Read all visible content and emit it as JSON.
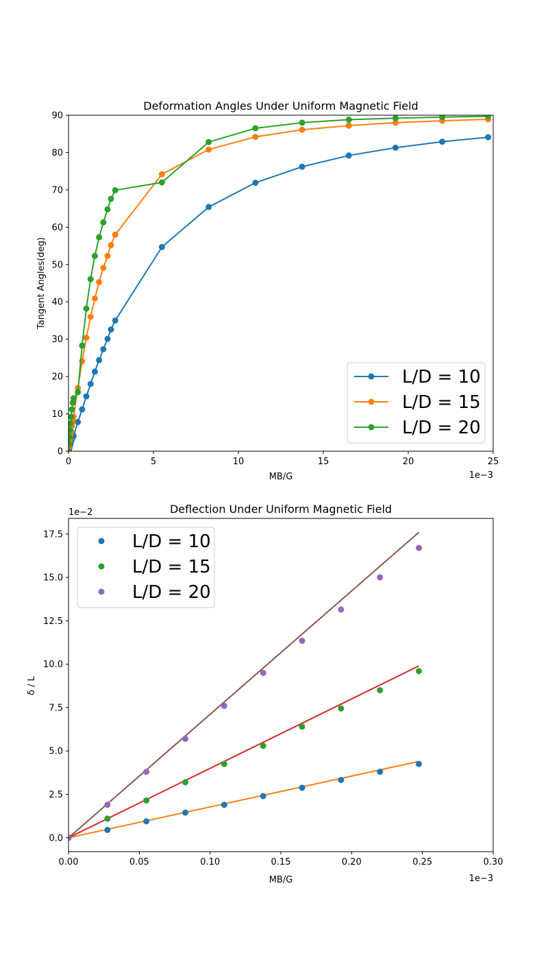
{
  "chart_data": [
    {
      "type": "line",
      "title": "Deformation Angles Under Uniform Magnetic Field",
      "xlabel": "MB/G",
      "ylabel": "Tangent Angles(deg)",
      "x_offset_text": "1e−3",
      "xlim": [
        0,
        25
      ],
      "ylim": [
        0,
        90
      ],
      "xticks": [
        0,
        5,
        10,
        15,
        20,
        25
      ],
      "yticks": [
        0,
        10,
        20,
        30,
        40,
        50,
        60,
        70,
        80,
        90
      ],
      "xtick_labels": [
        "0",
        "5",
        "10",
        "15",
        "20",
        "25"
      ],
      "ytick_labels": [
        "0",
        "10",
        "20",
        "30",
        "40",
        "50",
        "60",
        "70",
        "80",
        "90"
      ],
      "grid": false,
      "legend_position": "lower right",
      "series": [
        {
          "name": "L/D = 10",
          "color": "#1f77b4",
          "x": [
            0,
            0.03,
            0.06,
            0.09,
            0.12,
            0.15,
            0.2,
            0.25,
            0.3,
            0.55,
            0.8,
            1.05,
            1.3,
            1.55,
            1.8,
            2.05,
            2.3,
            2.5,
            2.75,
            5.5,
            8.25,
            11.0,
            13.75,
            16.5,
            19.25,
            22.0,
            24.7
          ],
          "y": [
            0,
            0.5,
            1.0,
            1.5,
            2.0,
            2.5,
            3.2,
            3.8,
            4.1,
            7.8,
            11.2,
            14.7,
            18.0,
            21.3,
            24.4,
            27.3,
            30.1,
            32.6,
            35.0,
            54.7,
            65.4,
            71.9,
            76.2,
            79.2,
            81.3,
            82.9,
            84.1
          ]
        },
        {
          "name": "L/D = 15",
          "color": "#ff7f0e",
          "x": [
            0,
            0.03,
            0.06,
            0.09,
            0.12,
            0.15,
            0.2,
            0.25,
            0.3,
            0.55,
            0.8,
            1.05,
            1.3,
            1.55,
            1.8,
            2.05,
            2.3,
            2.5,
            2.75,
            5.5,
            8.25,
            11.0,
            13.75,
            16.5,
            19.25,
            22.0,
            24.7
          ],
          "y": [
            0,
            1.1,
            2.2,
            3.3,
            4.4,
            5.4,
            6.8,
            8.0,
            9.2,
            16.9,
            24.1,
            30.4,
            36.0,
            40.9,
            45.3,
            49.1,
            52.3,
            55.2,
            58.0,
            74.2,
            80.8,
            84.2,
            86.1,
            87.2,
            88.0,
            88.5,
            88.9
          ]
        },
        {
          "name": "L/D = 20",
          "color": "#2ca02c",
          "x": [
            0,
            0.03,
            0.06,
            0.09,
            0.12,
            0.15,
            0.2,
            0.25,
            0.3,
            0.55,
            0.8,
            1.05,
            1.3,
            1.55,
            1.8,
            2.05,
            2.3,
            2.5,
            2.75,
            5.5,
            8.25,
            11.0,
            13.75,
            16.5,
            19.25,
            22.0,
            24.7
          ],
          "y": [
            0,
            1.9,
            3.8,
            5.6,
            7.4,
            9.2,
            11.2,
            13.0,
            14.2,
            15.8,
            28.3,
            38.2,
            46.1,
            52.3,
            57.3,
            61.3,
            64.8,
            67.6,
            69.9,
            72.0,
            82.8,
            86.5,
            88.0,
            88.8,
            89.2,
            89.5,
            89.7
          ]
        }
      ]
    },
    {
      "type": "scatter",
      "title": "Deflection Under Uniform Magnetic Field",
      "xlabel": "MB/G",
      "ylabel": "δ / L",
      "x_offset_text": "1e−3",
      "y_offset_text": "1e−2",
      "xlim": [
        0,
        0.3
      ],
      "ylim": [
        -0.8,
        18.4
      ],
      "xticks": [
        0,
        0.05,
        0.1,
        0.15,
        0.2,
        0.25,
        0.3
      ],
      "yticks": [
        0,
        2.5,
        5.0,
        7.5,
        10.0,
        12.5,
        15.0,
        17.5
      ],
      "xtick_labels": [
        "0.00",
        "0.05",
        "0.10",
        "0.15",
        "0.20",
        "0.25",
        "0.30"
      ],
      "ytick_labels": [
        "0.0",
        "2.5",
        "5.0",
        "7.5",
        "10.0",
        "12.5",
        "15.0",
        "17.5"
      ],
      "grid": false,
      "legend_position": "upper left",
      "series": [
        {
          "name": "L/D = 10",
          "color": "#1f77b4",
          "x": [
            0,
            0.0275,
            0.055,
            0.0825,
            0.11,
            0.1375,
            0.165,
            0.1925,
            0.22,
            0.2475
          ],
          "y": [
            0,
            0.45,
            0.95,
            1.45,
            1.9,
            2.4,
            2.88,
            3.33,
            3.8,
            4.25
          ]
        },
        {
          "name": "L/D = 15",
          "color": "#2ca02c",
          "x": [
            0,
            0.0275,
            0.055,
            0.0825,
            0.11,
            0.1375,
            0.165,
            0.1925,
            0.22,
            0.2475
          ],
          "y": [
            0,
            1.1,
            2.15,
            3.2,
            4.25,
            5.3,
            6.4,
            7.45,
            8.5,
            9.6
          ]
        },
        {
          "name": "L/D = 20",
          "color": "#9467bd",
          "x": [
            0,
            0.0275,
            0.055,
            0.0825,
            0.11,
            0.1375,
            0.165,
            0.1925,
            0.22,
            0.2475
          ],
          "y": [
            0,
            1.9,
            3.8,
            5.7,
            7.6,
            9.5,
            11.35,
            13.15,
            15.0,
            16.7
          ]
        }
      ],
      "fit_lines": [
        {
          "color": "#ff7f0e",
          "x": [
            0,
            0.2475
          ],
          "y": [
            0,
            4.4
          ]
        },
        {
          "color": "#d62728",
          "x": [
            0,
            0.2475
          ],
          "y": [
            0,
            9.9
          ]
        },
        {
          "color": "#8c564b",
          "x": [
            0,
            0.2475
          ],
          "y": [
            0,
            17.6
          ]
        }
      ]
    }
  ]
}
